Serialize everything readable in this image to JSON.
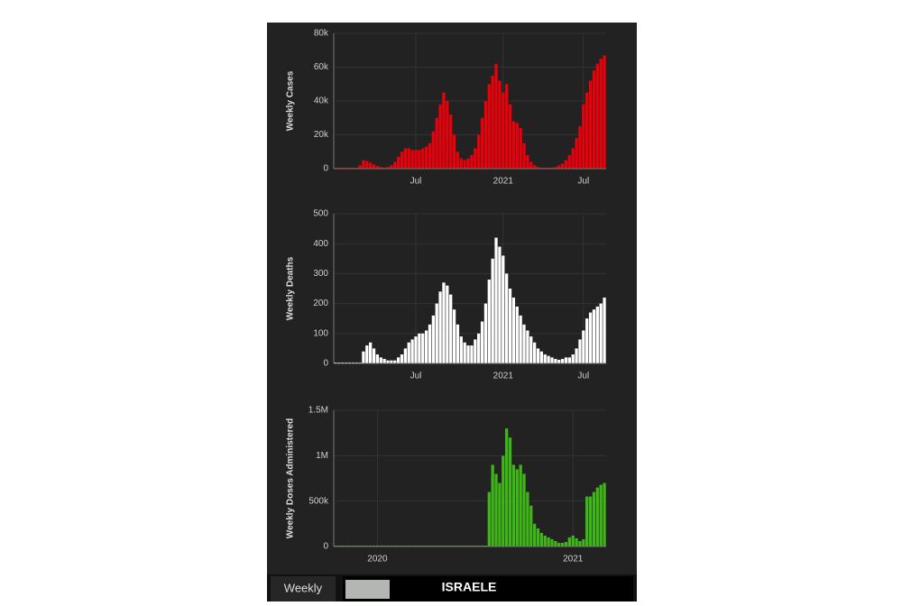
{
  "chart_data": [
    {
      "type": "bar",
      "y_label": "Weekly Cases",
      "color": "#e8000b",
      "grid": true,
      "categories": [
        null,
        null,
        null,
        null,
        null,
        null,
        null,
        null,
        null,
        null,
        null,
        null,
        null,
        null,
        null,
        null,
        null,
        null,
        null,
        null,
        null,
        null,
        null,
        "Jul",
        null,
        null,
        null,
        null,
        null,
        null,
        null,
        null,
        null,
        null,
        null,
        null,
        null,
        null,
        null,
        null,
        null,
        null,
        null,
        null,
        null,
        null,
        null,
        null,
        "2021",
        null,
        null,
        null,
        null,
        null,
        null,
        null,
        null,
        null,
        null,
        null,
        null,
        null,
        null,
        null,
        null,
        null,
        null,
        null,
        null,
        null,
        null,
        "Jul",
        null,
        null,
        null,
        null,
        null,
        null
      ],
      "values": [
        0,
        0,
        0,
        0,
        0,
        0,
        0,
        2000,
        5000,
        4500,
        3500,
        2500,
        1500,
        1000,
        500,
        1000,
        2000,
        4000,
        7000,
        10000,
        12000,
        12000,
        11000,
        11000,
        11000,
        12000,
        13000,
        15000,
        22000,
        30000,
        38000,
        45000,
        40000,
        32000,
        20000,
        10000,
        6000,
        5000,
        6000,
        8000,
        12000,
        20000,
        30000,
        40000,
        50000,
        55000,
        62000,
        52000,
        45000,
        50000,
        38000,
        28000,
        27000,
        24000,
        15000,
        8000,
        4000,
        2000,
        1000,
        500,
        0,
        0,
        500,
        1000,
        2000,
        3000,
        5000,
        8000,
        12000,
        18000,
        25000,
        38000,
        45000,
        52000,
        58000,
        62000,
        65000,
        67000
      ],
      "ylim": [
        0,
        80000
      ],
      "yticks": [
        0,
        {
          "value": 20000,
          "label": "20k"
        },
        {
          "value": 40000,
          "label": "40k"
        },
        {
          "value": 60000,
          "label": "60k"
        },
        {
          "value": 80000,
          "label": "80k"
        }
      ]
    },
    {
      "type": "bar",
      "y_label": "Weekly Deaths",
      "color": "#ffffff",
      "grid": true,
      "categories": [
        null,
        null,
        null,
        null,
        null,
        null,
        null,
        null,
        null,
        null,
        null,
        null,
        null,
        null,
        null,
        null,
        null,
        null,
        null,
        null,
        null,
        null,
        null,
        "Jul",
        null,
        null,
        null,
        null,
        null,
        null,
        null,
        null,
        null,
        null,
        null,
        null,
        null,
        null,
        null,
        null,
        null,
        null,
        null,
        null,
        null,
        null,
        null,
        null,
        "2021",
        null,
        null,
        null,
        null,
        null,
        null,
        null,
        null,
        null,
        null,
        null,
        null,
        null,
        null,
        null,
        null,
        null,
        null,
        null,
        null,
        null,
        null,
        "Jul",
        null,
        null,
        null,
        null,
        null,
        null
      ],
      "values": [
        0,
        0,
        0,
        0,
        0,
        0,
        0,
        0,
        40,
        60,
        70,
        50,
        30,
        20,
        15,
        10,
        10,
        10,
        20,
        30,
        50,
        70,
        80,
        90,
        100,
        100,
        110,
        130,
        160,
        200,
        240,
        270,
        260,
        230,
        180,
        130,
        90,
        70,
        60,
        60,
        80,
        100,
        140,
        200,
        280,
        350,
        420,
        390,
        360,
        300,
        250,
        220,
        190,
        160,
        130,
        110,
        90,
        70,
        50,
        40,
        30,
        25,
        20,
        15,
        12,
        15,
        20,
        20,
        30,
        50,
        80,
        110,
        150,
        170,
        180,
        190,
        200,
        220
      ],
      "ylim": [
        0,
        500
      ],
      "yticks": [
        0,
        100,
        200,
        300,
        400,
        500
      ]
    },
    {
      "type": "bar",
      "y_label": "Weekly Doses Administered",
      "color": "#3fb618",
      "grid": true,
      "categories": [
        null,
        null,
        null,
        null,
        null,
        null,
        null,
        null,
        null,
        null,
        null,
        null,
        "2020",
        null,
        null,
        null,
        null,
        null,
        null,
        null,
        null,
        null,
        null,
        null,
        null,
        null,
        null,
        null,
        null,
        null,
        null,
        null,
        null,
        null,
        null,
        null,
        null,
        null,
        null,
        null,
        null,
        null,
        null,
        null,
        null,
        null,
        null,
        null,
        null,
        null,
        null,
        null,
        null,
        null,
        null,
        null,
        null,
        null,
        null,
        null,
        null,
        null,
        null,
        null,
        null,
        null,
        null,
        null,
        "2021",
        null,
        null,
        null,
        null,
        null,
        null,
        null,
        null,
        null
      ],
      "values": [
        0,
        0,
        0,
        0,
        0,
        0,
        0,
        0,
        0,
        0,
        0,
        0,
        0,
        0,
        0,
        0,
        0,
        0,
        0,
        0,
        0,
        0,
        0,
        0,
        0,
        0,
        0,
        0,
        0,
        0,
        0,
        0,
        0,
        0,
        0,
        0,
        0,
        0,
        0,
        0,
        0,
        0,
        0,
        0,
        600000,
        900000,
        800000,
        700000,
        1000000,
        1300000,
        1200000,
        900000,
        850000,
        900000,
        800000,
        600000,
        450000,
        250000,
        200000,
        150000,
        120000,
        100000,
        80000,
        60000,
        40000,
        40000,
        50000,
        100000,
        120000,
        90000,
        60000,
        80000,
        550000,
        550000,
        600000,
        650000,
        680000,
        700000
      ],
      "ylim": [
        0,
        1500000
      ],
      "yticks": [
        0,
        {
          "value": 500000,
          "label": "500k"
        },
        {
          "value": 1000000,
          "label": "1M"
        },
        {
          "value": 1500000,
          "label": "1.5M"
        }
      ]
    }
  ],
  "footer": {
    "tab": "Weekly",
    "country": "ISRAELE"
  }
}
